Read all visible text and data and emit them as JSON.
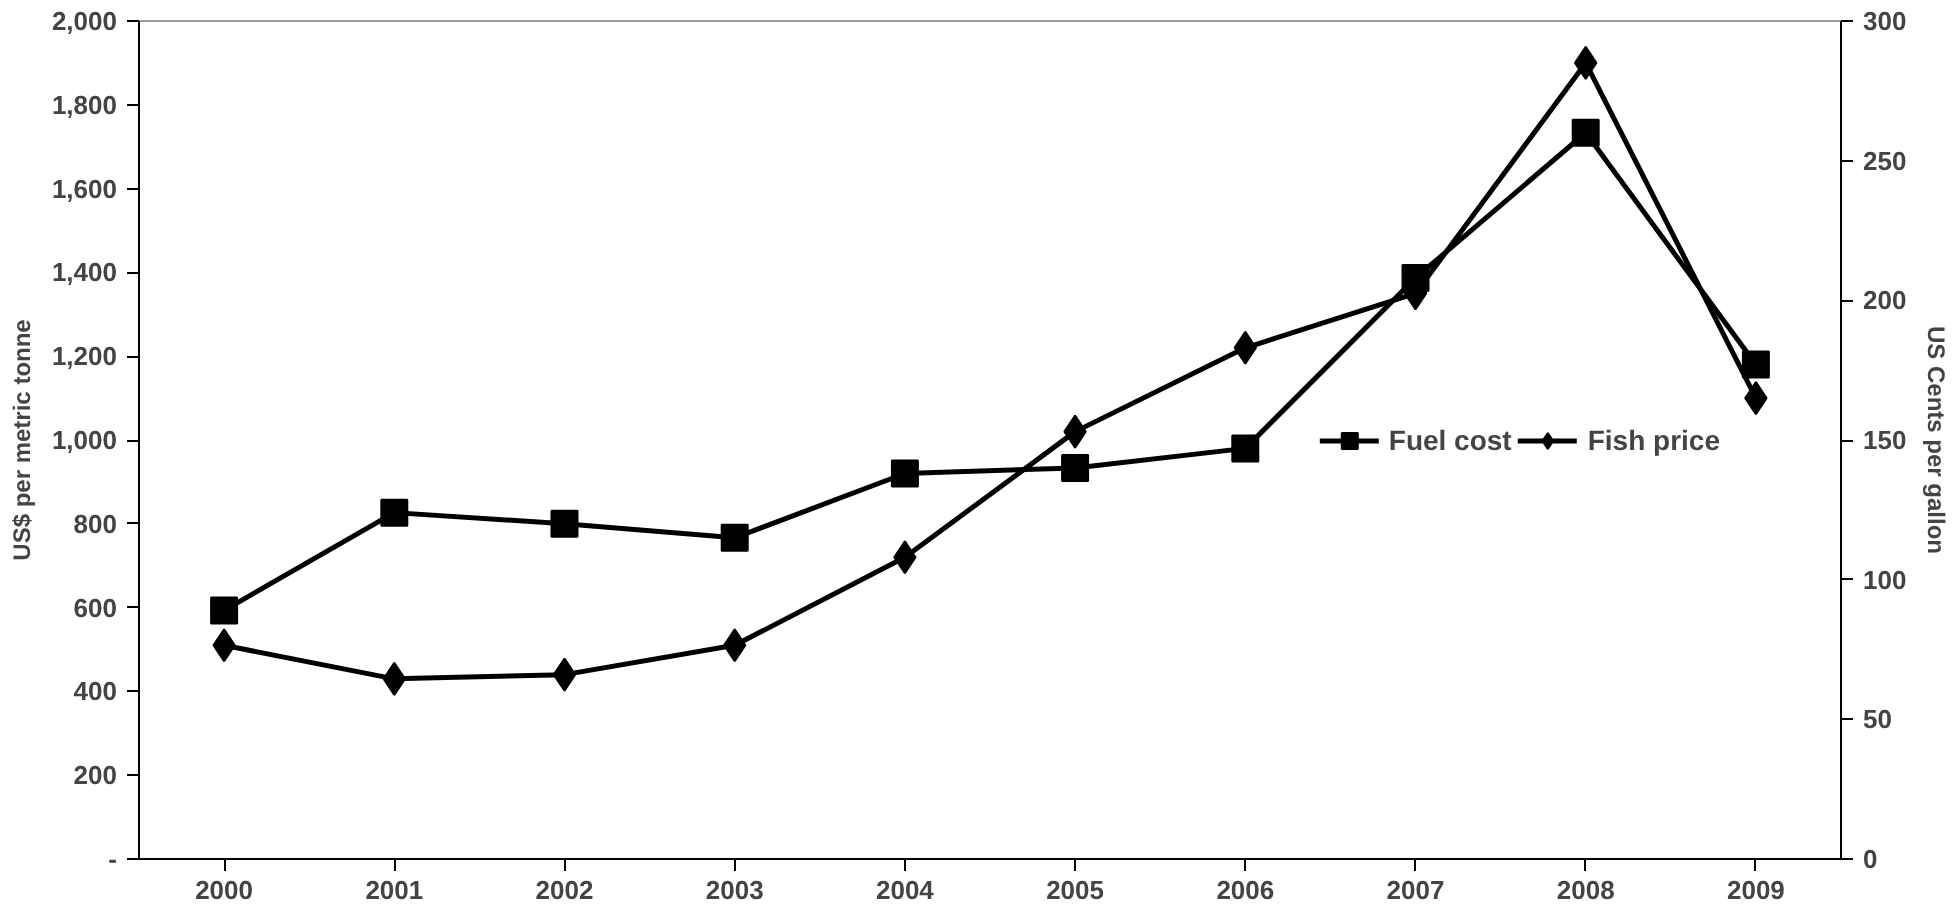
{
  "chart_data": {
    "type": "line",
    "ylabel": "US$ per metric tonne",
    "y2label": "US Cents per gallon",
    "categories": [
      "2000",
      "2001",
      "2002",
      "2003",
      "2004",
      "2005",
      "2006",
      "2007",
      "2008",
      "2009"
    ],
    "series": [
      {
        "name": "Fuel cost",
        "color": "#000000",
        "marker": "square",
        "axis": "y2",
        "values": [
          89,
          124,
          120,
          115,
          138,
          140,
          147,
          208,
          260,
          177
        ]
      },
      {
        "name": "Fish price",
        "color": "#000000",
        "marker": "diamond",
        "values": [
          510,
          430,
          440,
          510,
          720,
          1020,
          1220,
          1350,
          1900,
          1100
        ]
      }
    ],
    "ylim": [
      0,
      2000
    ],
    "yticks": [
      {
        "value": 0,
        "label": "-"
      },
      {
        "value": 200,
        "label": "200"
      },
      {
        "value": 400,
        "label": "400"
      },
      {
        "value": 600,
        "label": "600"
      },
      {
        "value": 800,
        "label": "800"
      },
      {
        "value": 1000,
        "label": "1,000"
      },
      {
        "value": 1200,
        "label": "1,200"
      },
      {
        "value": 1400,
        "label": "1,400"
      },
      {
        "value": 1600,
        "label": "1,600"
      },
      {
        "value": 1800,
        "label": "1,800"
      },
      {
        "value": 2000,
        "label": "2,000"
      }
    ],
    "y2lim": [
      0,
      300
    ],
    "y2ticks": [
      0,
      50,
      100,
      150,
      200,
      250,
      300
    ],
    "grid": false,
    "legend": "right",
    "line_style": "solid"
  }
}
